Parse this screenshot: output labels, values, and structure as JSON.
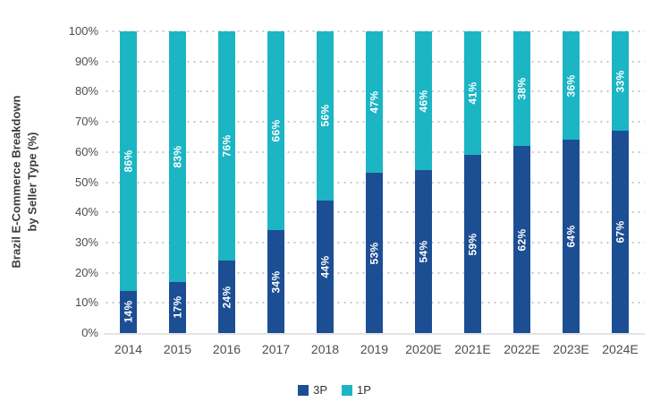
{
  "figure": {
    "ylabel_line1": "Brazil E-Commerce Breakdown",
    "ylabel_line2": "by Seller Type (%)"
  },
  "chart_data": {
    "type": "bar",
    "stacked": true,
    "title": "",
    "ylabel": "Brazil E-Commerce Breakdown by Seller Type (%)",
    "xlabel": "",
    "ylim": [
      0,
      100
    ],
    "yticks": [
      "100%",
      "90%",
      "80%",
      "70%",
      "60%",
      "50%",
      "40%",
      "30%",
      "20%",
      "10%",
      "0%"
    ],
    "grid": "dotted horizontal gridlines",
    "legend_position": "bottom center",
    "bar_label_style": "white bold percent labels rotated 90deg inside each segment",
    "categories": [
      "2014",
      "2015",
      "2016",
      "2017",
      "2018",
      "2019",
      "2020E",
      "2021E",
      "2022E",
      "2023E",
      "2024E"
    ],
    "series": [
      {
        "name": "3P",
        "color": "#1C4E94",
        "values": [
          14,
          17,
          24,
          34,
          44,
          53,
          54,
          59,
          62,
          64,
          67
        ]
      },
      {
        "name": "1P",
        "color": "#1CB5C4",
        "values": [
          86,
          83,
          76,
          66,
          56,
          47,
          46,
          41,
          38,
          36,
          33
        ]
      }
    ],
    "value_suffix": "%"
  }
}
